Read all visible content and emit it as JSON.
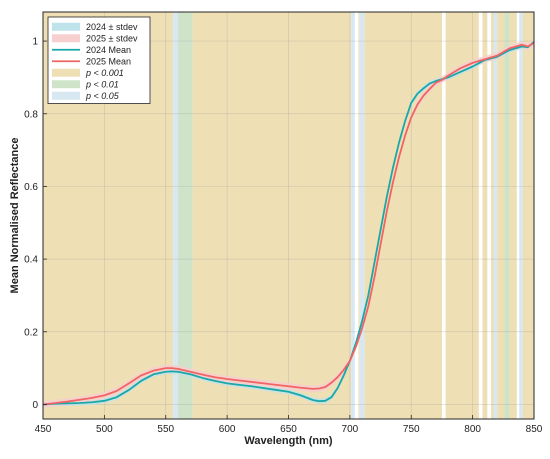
{
  "chart_data": {
    "type": "line",
    "title": "",
    "xlabel": "Wavelength (nm)",
    "ylabel": "Mean Normalised Reflectance",
    "xlim": [
      450,
      850
    ],
    "ylim": [
      -0.04,
      1.08
    ],
    "xticks": [
      450,
      500,
      550,
      600,
      650,
      700,
      750,
      800,
      850
    ],
    "yticks": [
      0,
      0.2,
      0.4,
      0.6,
      0.8,
      1
    ],
    "yticklabels": [
      "0",
      "0.2",
      "0.4",
      "0.6",
      "0.8",
      "1"
    ],
    "grid": true,
    "legend_position": "top-left",
    "colors": {
      "mean_2024": "#1aa7a7",
      "mean_2025": "#f06464",
      "band_2024": "#bfe3ea",
      "band_2025": "#f7cfcf",
      "p001": "#efdfb4",
      "p01": "#cfe3c9",
      "p05": "#d7e8f2"
    },
    "legend": [
      {
        "key": "band_2024",
        "label": "2024 ± stdev",
        "kind": "patch"
      },
      {
        "key": "band_2025",
        "label": "2025 ± stdev",
        "kind": "patch"
      },
      {
        "key": "mean_2024",
        "label": "2024 Mean",
        "kind": "line"
      },
      {
        "key": "mean_2025",
        "label": "2025 Mean",
        "kind": "line"
      },
      {
        "key": "p001",
        "label": "p < 0.001",
        "kind": "patch",
        "italic": true
      },
      {
        "key": "p01",
        "label": "p < 0.01",
        "kind": "patch",
        "italic": true
      },
      {
        "key": "p05",
        "label": "p < 0.05",
        "kind": "patch",
        "italic": true
      }
    ],
    "significance_regions": [
      {
        "from": 450,
        "to": 556,
        "level": "p001"
      },
      {
        "from": 556,
        "to": 560,
        "level": "p05"
      },
      {
        "from": 560,
        "to": 572,
        "level": "p01"
      },
      {
        "from": 572,
        "to": 701,
        "level": "p001"
      },
      {
        "from": 701,
        "to": 704,
        "level": "p05"
      },
      {
        "from": 707,
        "to": 708,
        "level": "p001"
      },
      {
        "from": 708,
        "to": 712,
        "level": "p05"
      },
      {
        "from": 712,
        "to": 775,
        "level": "p001"
      },
      {
        "from": 778,
        "to": 805,
        "level": "p001"
      },
      {
        "from": 808,
        "to": 812,
        "level": "p001"
      },
      {
        "from": 815,
        "to": 817,
        "level": "p001"
      },
      {
        "from": 817,
        "to": 820,
        "level": "p05"
      },
      {
        "from": 820,
        "to": 826,
        "level": "p001"
      },
      {
        "from": 826,
        "to": 830,
        "level": "p01"
      },
      {
        "from": 830,
        "to": 836,
        "level": "p001"
      },
      {
        "from": 838,
        "to": 841,
        "level": "p05"
      },
      {
        "from": 841,
        "to": 850,
        "level": "p001"
      }
    ],
    "series": [
      {
        "name": "2024 Mean",
        "color_key": "mean_2024",
        "band_key": "band_2024",
        "stdev": 0.007,
        "x": [
          450,
          460,
          470,
          480,
          490,
          500,
          510,
          520,
          530,
          540,
          550,
          555,
          560,
          570,
          580,
          590,
          600,
          610,
          620,
          630,
          640,
          650,
          660,
          670,
          675,
          680,
          685,
          690,
          695,
          700,
          705,
          710,
          715,
          720,
          725,
          730,
          735,
          740,
          745,
          750,
          755,
          760,
          765,
          770,
          775,
          780,
          790,
          800,
          810,
          820,
          830,
          840,
          845,
          850
        ],
        "y": [
          0,
          0.002,
          0.003,
          0.004,
          0.006,
          0.01,
          0.02,
          0.04,
          0.065,
          0.083,
          0.09,
          0.091,
          0.09,
          0.083,
          0.073,
          0.065,
          0.058,
          0.054,
          0.05,
          0.045,
          0.04,
          0.035,
          0.025,
          0.012,
          0.009,
          0.01,
          0.02,
          0.045,
          0.08,
          0.12,
          0.17,
          0.23,
          0.3,
          0.39,
          0.48,
          0.57,
          0.65,
          0.72,
          0.78,
          0.83,
          0.855,
          0.87,
          0.883,
          0.89,
          0.895,
          0.9,
          0.915,
          0.93,
          0.948,
          0.957,
          0.975,
          0.985,
          0.983,
          0.998
        ]
      },
      {
        "name": "2025 Mean",
        "color_key": "mean_2025",
        "band_key": "band_2025",
        "stdev": 0.009,
        "x": [
          450,
          460,
          470,
          480,
          490,
          500,
          510,
          520,
          530,
          540,
          550,
          555,
          560,
          570,
          580,
          590,
          600,
          610,
          620,
          630,
          640,
          650,
          660,
          670,
          675,
          680,
          685,
          690,
          695,
          700,
          705,
          710,
          715,
          720,
          725,
          730,
          735,
          740,
          745,
          750,
          755,
          760,
          765,
          770,
          775,
          780,
          790,
          800,
          810,
          820,
          830,
          840,
          845,
          850
        ],
        "y": [
          0,
          0.004,
          0.008,
          0.013,
          0.018,
          0.025,
          0.037,
          0.058,
          0.08,
          0.093,
          0.1,
          0.1,
          0.098,
          0.09,
          0.082,
          0.075,
          0.07,
          0.066,
          0.062,
          0.058,
          0.054,
          0.05,
          0.046,
          0.043,
          0.044,
          0.048,
          0.06,
          0.075,
          0.095,
          0.12,
          0.16,
          0.21,
          0.27,
          0.35,
          0.44,
          0.53,
          0.61,
          0.68,
          0.74,
          0.79,
          0.825,
          0.85,
          0.868,
          0.885,
          0.893,
          0.905,
          0.925,
          0.94,
          0.95,
          0.96,
          0.98,
          0.99,
          0.985,
          0.995
        ]
      }
    ]
  }
}
